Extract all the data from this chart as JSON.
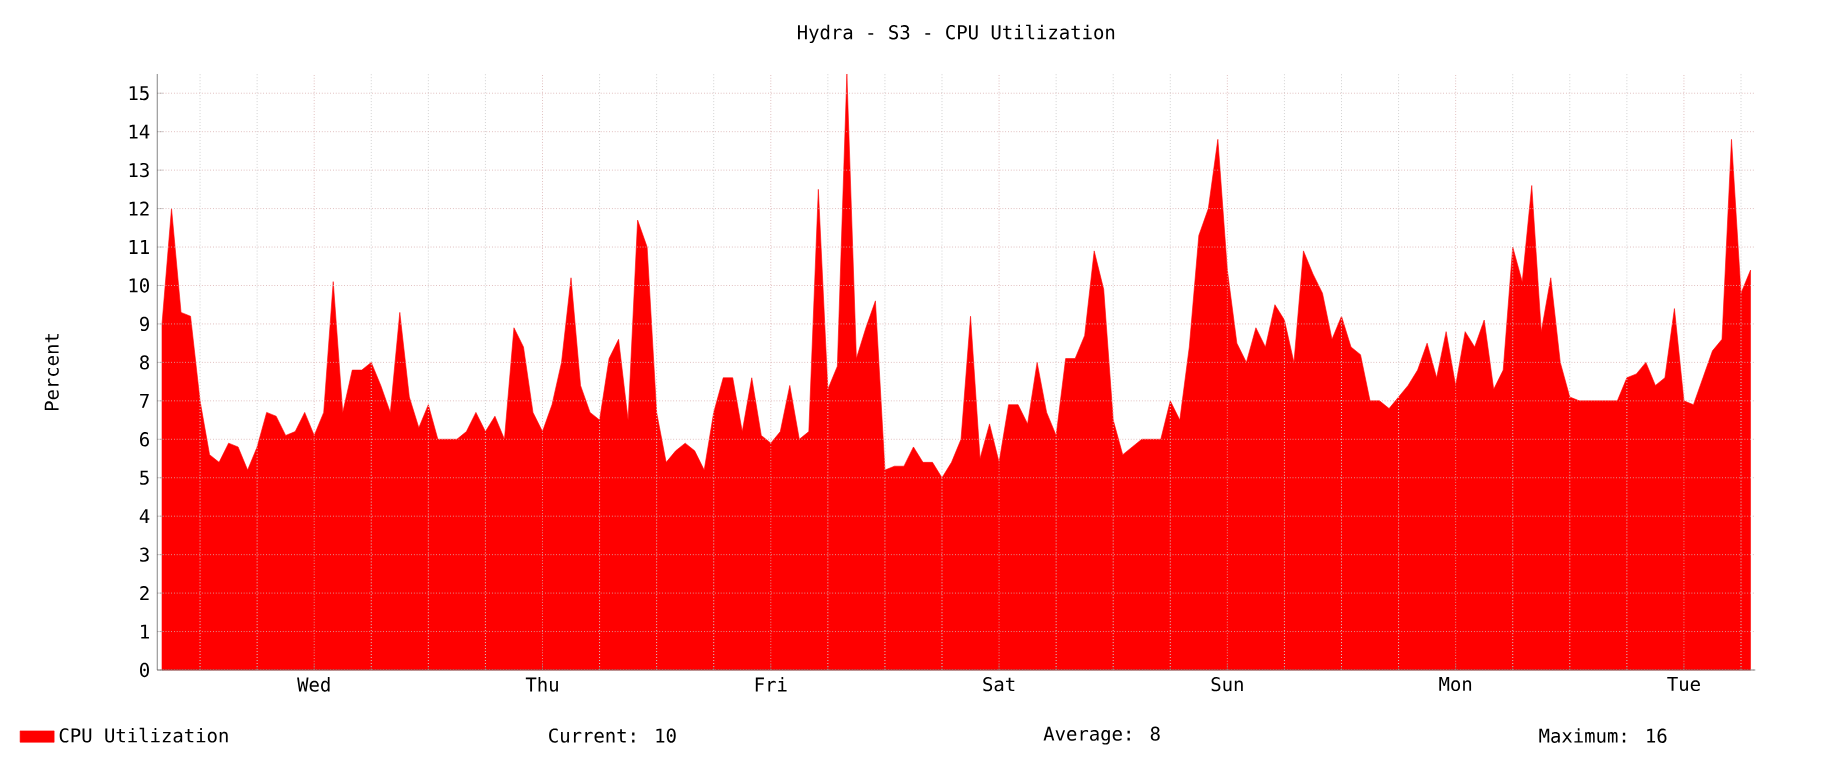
{
  "chart_data": {
    "type": "area",
    "title": "Hydra - S3 - CPU Utilization",
    "ylabel": "Percent",
    "categories": [
      null,
      null,
      null,
      null,
      null,
      null,
      null,
      null,
      null,
      null,
      null,
      null,
      null,
      null,
      null,
      null,
      "Wed",
      null,
      null,
      null,
      null,
      null,
      null,
      null,
      null,
      null,
      null,
      null,
      null,
      null,
      null,
      null,
      null,
      null,
      null,
      null,
      null,
      null,
      null,
      null,
      "Thu",
      null,
      null,
      null,
      null,
      null,
      null,
      null,
      null,
      null,
      null,
      null,
      null,
      null,
      null,
      null,
      null,
      null,
      null,
      null,
      null,
      null,
      null,
      null,
      "Fri",
      null,
      null,
      null,
      null,
      null,
      null,
      null,
      null,
      null,
      null,
      null,
      null,
      null,
      null,
      null,
      null,
      null,
      null,
      null,
      null,
      null,
      null,
      null,
      "Sat",
      null,
      null,
      null,
      null,
      null,
      null,
      null,
      null,
      null,
      null,
      null,
      null,
      null,
      null,
      null,
      null,
      null,
      null,
      null,
      null,
      null,
      null,
      null,
      "Sun",
      null,
      null,
      null,
      null,
      null,
      null,
      null,
      null,
      null,
      null,
      null,
      null,
      null,
      null,
      null,
      null,
      null,
      null,
      null,
      null,
      null,
      null,
      null,
      "Mon",
      null,
      null,
      null,
      null,
      null,
      null,
      null,
      null,
      null,
      null,
      null,
      null,
      null,
      null,
      null,
      null,
      null,
      null,
      null,
      null,
      null,
      null,
      null,
      "Tue",
      null,
      null,
      null,
      null,
      null,
      null,
      null
    ],
    "ylim": [
      0,
      15.5
    ],
    "yticks": [
      0,
      1,
      2,
      3,
      4,
      5,
      6,
      7,
      8,
      9,
      10,
      11,
      12,
      13,
      14,
      15
    ],
    "grid": true,
    "legend": "bottom left",
    "annotations": [
      "Current:       10",
      "Average:       8",
      "Maximum:       16"
    ],
    "series": [
      {
        "name": "CPU Utilization",
        "color": "#ff0000",
        "values": [
          9.0,
          12.0,
          9.3,
          9.2,
          7.0,
          5.6,
          5.4,
          5.9,
          5.8,
          5.2,
          5.8,
          6.7,
          6.6,
          6.1,
          6.2,
          6.7,
          6.1,
          6.7,
          10.1,
          6.7,
          7.8,
          7.8,
          8.0,
          7.4,
          6.7,
          9.3,
          7.1,
          6.3,
          6.9,
          6.0,
          6.0,
          6.0,
          6.2,
          6.7,
          6.2,
          6.6,
          6.0,
          8.9,
          8.4,
          6.7,
          6.2,
          6.9,
          8.0,
          10.2,
          7.4,
          6.7,
          6.5,
          8.1,
          8.6,
          6.5,
          11.7,
          11.0,
          6.7,
          5.4,
          5.7,
          5.9,
          5.7,
          5.2,
          6.7,
          7.6,
          7.6,
          6.2,
          7.6,
          6.1,
          5.9,
          6.2,
          7.4,
          6.0,
          6.2,
          12.5,
          7.3,
          7.9,
          15.5,
          8.1,
          8.9,
          9.6,
          5.2,
          5.3,
          5.3,
          5.8,
          5.4,
          5.4,
          5.0,
          5.4,
          6.0,
          9.2,
          5.5,
          6.4,
          5.4,
          6.9,
          6.9,
          6.4,
          8.0,
          6.7,
          6.1,
          8.1,
          8.1,
          8.7,
          10.9,
          9.9,
          6.5,
          5.6,
          5.8,
          6.0,
          6.0,
          6.0,
          7.0,
          6.5,
          8.4,
          11.3,
          12.0,
          13.8,
          10.4,
          8.5,
          8.0,
          8.9,
          8.4,
          9.5,
          9.1,
          8.0,
          10.9,
          10.3,
          9.8,
          8.6,
          9.2,
          8.4,
          8.2,
          7.0,
          7.0,
          6.8,
          7.1,
          7.4,
          7.8,
          8.5,
          7.6,
          8.8,
          7.4,
          8.8,
          8.4,
          9.1,
          7.3,
          7.8,
          11.0,
          10.1,
          12.6,
          8.8,
          10.2,
          8.0,
          7.1,
          7.0,
          7.0,
          7.0,
          7.0,
          7.0,
          7.6,
          7.7,
          8.0,
          7.4,
          7.6,
          9.4,
          7.0,
          6.9,
          7.6,
          8.3,
          8.6,
          13.8,
          9.8,
          10.4
        ]
      }
    ]
  }
}
